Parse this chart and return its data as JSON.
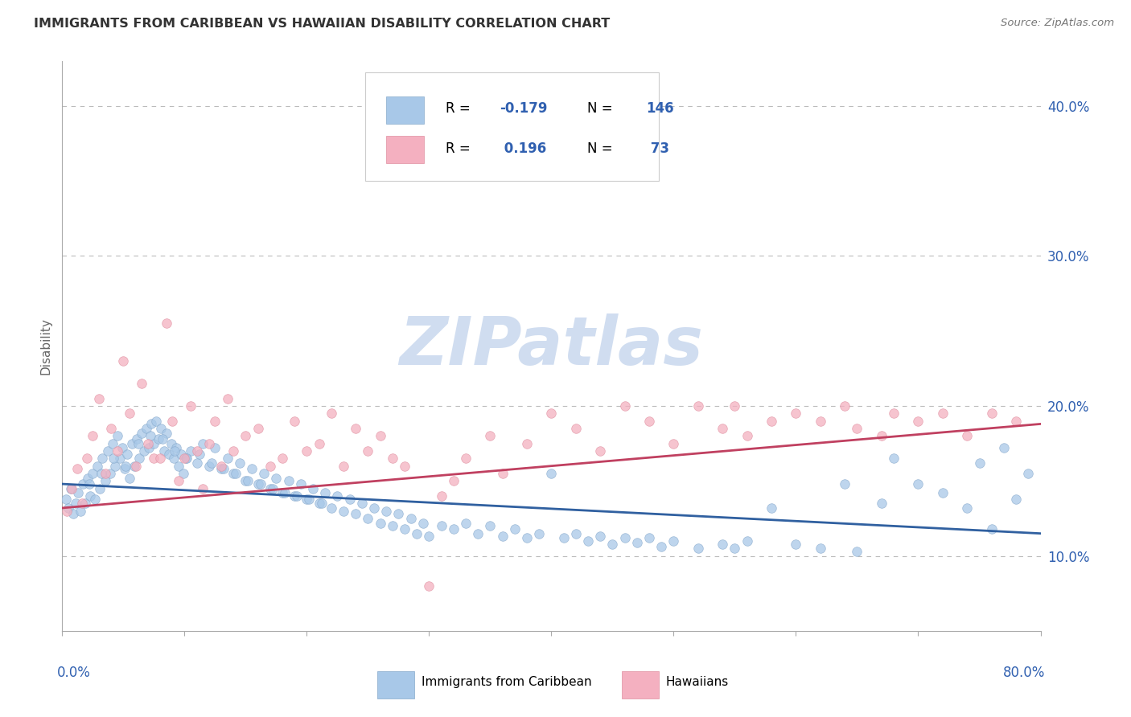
{
  "title": "IMMIGRANTS FROM CARIBBEAN VS HAWAIIAN DISABILITY CORRELATION CHART",
  "source": "Source: ZipAtlas.com",
  "ylabel": "Disability",
  "xlim": [
    0.0,
    80.0
  ],
  "ylim": [
    5.0,
    43.0
  ],
  "yticks": [
    10.0,
    20.0,
    30.0,
    40.0
  ],
  "ytick_labels": [
    "10.0%",
    "20.0%",
    "30.0%",
    "40.0%"
  ],
  "blue_color": "#a8c8e8",
  "blue_edge_color": "#88aacc",
  "blue_line_color": "#3060a0",
  "pink_color": "#f4b0c0",
  "pink_edge_color": "#e090a0",
  "pink_line_color": "#c04060",
  "label_color": "#3060b0",
  "title_color": "#333333",
  "source_color": "#777777",
  "axis_color": "#aaaaaa",
  "grid_color": "#bbbbbb",
  "watermark": "ZIPatlas",
  "watermark_color": "#d0ddf0",
  "background": "#ffffff",
  "blue_scatter": [
    [
      0.3,
      13.8
    ],
    [
      0.5,
      13.2
    ],
    [
      0.7,
      14.5
    ],
    [
      0.9,
      12.8
    ],
    [
      1.1,
      13.5
    ],
    [
      1.3,
      14.2
    ],
    [
      1.5,
      13.0
    ],
    [
      1.7,
      14.8
    ],
    [
      1.9,
      13.5
    ],
    [
      2.1,
      15.2
    ],
    [
      2.3,
      14.0
    ],
    [
      2.5,
      15.5
    ],
    [
      2.7,
      13.8
    ],
    [
      2.9,
      16.0
    ],
    [
      3.1,
      14.5
    ],
    [
      3.3,
      16.5
    ],
    [
      3.5,
      15.0
    ],
    [
      3.7,
      17.0
    ],
    [
      3.9,
      15.5
    ],
    [
      4.1,
      17.5
    ],
    [
      4.3,
      16.0
    ],
    [
      4.5,
      18.0
    ],
    [
      4.7,
      16.5
    ],
    [
      4.9,
      17.2
    ],
    [
      5.1,
      15.8
    ],
    [
      5.3,
      16.8
    ],
    [
      5.5,
      15.2
    ],
    [
      5.7,
      17.5
    ],
    [
      5.9,
      16.0
    ],
    [
      6.1,
      17.8
    ],
    [
      6.3,
      16.5
    ],
    [
      6.5,
      18.2
    ],
    [
      6.7,
      17.0
    ],
    [
      6.9,
      18.5
    ],
    [
      7.1,
      17.2
    ],
    [
      7.3,
      18.8
    ],
    [
      7.5,
      17.5
    ],
    [
      7.7,
      19.0
    ],
    [
      7.9,
      17.8
    ],
    [
      8.1,
      18.5
    ],
    [
      8.3,
      17.0
    ],
    [
      8.5,
      18.2
    ],
    [
      8.7,
      16.8
    ],
    [
      8.9,
      17.5
    ],
    [
      9.1,
      16.5
    ],
    [
      9.3,
      17.2
    ],
    [
      9.5,
      16.0
    ],
    [
      9.7,
      16.8
    ],
    [
      9.9,
      15.5
    ],
    [
      10.1,
      16.5
    ],
    [
      10.5,
      17.0
    ],
    [
      11.0,
      16.2
    ],
    [
      11.5,
      17.5
    ],
    [
      12.0,
      16.0
    ],
    [
      12.5,
      17.2
    ],
    [
      13.0,
      15.8
    ],
    [
      13.5,
      16.5
    ],
    [
      14.0,
      15.5
    ],
    [
      14.5,
      16.2
    ],
    [
      15.0,
      15.0
    ],
    [
      15.5,
      15.8
    ],
    [
      16.0,
      14.8
    ],
    [
      16.5,
      15.5
    ],
    [
      17.0,
      14.5
    ],
    [
      17.5,
      15.2
    ],
    [
      18.0,
      14.2
    ],
    [
      18.5,
      15.0
    ],
    [
      19.0,
      14.0
    ],
    [
      19.5,
      14.8
    ],
    [
      20.0,
      13.8
    ],
    [
      20.5,
      14.5
    ],
    [
      21.0,
      13.5
    ],
    [
      21.5,
      14.2
    ],
    [
      22.0,
      13.2
    ],
    [
      22.5,
      14.0
    ],
    [
      23.0,
      13.0
    ],
    [
      23.5,
      13.8
    ],
    [
      24.0,
      12.8
    ],
    [
      24.5,
      13.5
    ],
    [
      25.0,
      12.5
    ],
    [
      25.5,
      13.2
    ],
    [
      26.0,
      12.2
    ],
    [
      26.5,
      13.0
    ],
    [
      27.0,
      12.0
    ],
    [
      27.5,
      12.8
    ],
    [
      28.0,
      11.8
    ],
    [
      28.5,
      12.5
    ],
    [
      29.0,
      11.5
    ],
    [
      29.5,
      12.2
    ],
    [
      30.0,
      11.3
    ],
    [
      31.0,
      12.0
    ],
    [
      32.0,
      11.8
    ],
    [
      33.0,
      12.2
    ],
    [
      34.0,
      11.5
    ],
    [
      35.0,
      12.0
    ],
    [
      36.0,
      11.3
    ],
    [
      37.0,
      11.8
    ],
    [
      38.0,
      11.2
    ],
    [
      39.0,
      11.5
    ],
    [
      40.0,
      15.5
    ],
    [
      41.0,
      11.2
    ],
    [
      42.0,
      11.5
    ],
    [
      43.0,
      11.0
    ],
    [
      44.0,
      11.3
    ],
    [
      45.0,
      10.8
    ],
    [
      46.0,
      11.2
    ],
    [
      47.0,
      10.9
    ],
    [
      48.0,
      11.2
    ],
    [
      49.0,
      10.6
    ],
    [
      50.0,
      11.0
    ],
    [
      52.0,
      10.5
    ],
    [
      54.0,
      10.8
    ],
    [
      55.0,
      10.5
    ],
    [
      56.0,
      11.0
    ],
    [
      58.0,
      13.2
    ],
    [
      60.0,
      10.8
    ],
    [
      62.0,
      10.5
    ],
    [
      64.0,
      14.8
    ],
    [
      65.0,
      10.3
    ],
    [
      67.0,
      13.5
    ],
    [
      68.0,
      16.5
    ],
    [
      70.0,
      14.8
    ],
    [
      72.0,
      14.2
    ],
    [
      74.0,
      13.2
    ],
    [
      75.0,
      16.2
    ],
    [
      76.0,
      11.8
    ],
    [
      77.0,
      17.2
    ],
    [
      78.0,
      13.8
    ],
    [
      79.0,
      15.5
    ],
    [
      2.2,
      14.8
    ],
    [
      3.2,
      15.5
    ],
    [
      4.2,
      16.5
    ],
    [
      5.2,
      16.0
    ],
    [
      6.2,
      17.5
    ],
    [
      7.2,
      18.0
    ],
    [
      8.2,
      17.8
    ],
    [
      9.2,
      17.0
    ],
    [
      10.2,
      16.5
    ],
    [
      11.2,
      16.8
    ],
    [
      12.2,
      16.2
    ],
    [
      13.2,
      15.8
    ],
    [
      14.2,
      15.5
    ],
    [
      15.2,
      15.0
    ],
    [
      16.2,
      14.8
    ],
    [
      17.2,
      14.5
    ],
    [
      18.2,
      14.2
    ],
    [
      19.2,
      14.0
    ],
    [
      20.2,
      13.8
    ],
    [
      21.2,
      13.5
    ]
  ],
  "pink_scatter": [
    [
      0.4,
      13.0
    ],
    [
      0.8,
      14.5
    ],
    [
      1.2,
      15.8
    ],
    [
      1.6,
      13.5
    ],
    [
      2.0,
      16.5
    ],
    [
      2.5,
      18.0
    ],
    [
      3.0,
      20.5
    ],
    [
      3.5,
      15.5
    ],
    [
      4.0,
      18.5
    ],
    [
      4.5,
      17.0
    ],
    [
      5.0,
      23.0
    ],
    [
      5.5,
      19.5
    ],
    [
      6.0,
      16.0
    ],
    [
      6.5,
      21.5
    ],
    [
      7.0,
      17.5
    ],
    [
      7.5,
      16.5
    ],
    [
      8.0,
      16.5
    ],
    [
      8.5,
      25.5
    ],
    [
      9.0,
      19.0
    ],
    [
      9.5,
      15.0
    ],
    [
      10.0,
      16.5
    ],
    [
      10.5,
      20.0
    ],
    [
      11.0,
      17.0
    ],
    [
      11.5,
      14.5
    ],
    [
      12.0,
      17.5
    ],
    [
      12.5,
      19.0
    ],
    [
      13.0,
      16.0
    ],
    [
      13.5,
      20.5
    ],
    [
      14.0,
      17.0
    ],
    [
      15.0,
      18.0
    ],
    [
      16.0,
      18.5
    ],
    [
      17.0,
      16.0
    ],
    [
      18.0,
      16.5
    ],
    [
      19.0,
      19.0
    ],
    [
      20.0,
      17.0
    ],
    [
      21.0,
      17.5
    ],
    [
      22.0,
      19.5
    ],
    [
      23.0,
      16.0
    ],
    [
      24.0,
      18.5
    ],
    [
      25.0,
      17.0
    ],
    [
      26.0,
      18.0
    ],
    [
      27.0,
      16.5
    ],
    [
      28.0,
      16.0
    ],
    [
      30.0,
      8.0
    ],
    [
      31.0,
      14.0
    ],
    [
      32.0,
      15.0
    ],
    [
      33.0,
      16.5
    ],
    [
      35.0,
      18.0
    ],
    [
      36.0,
      15.5
    ],
    [
      38.0,
      17.5
    ],
    [
      40.0,
      19.5
    ],
    [
      42.0,
      18.5
    ],
    [
      44.0,
      17.0
    ],
    [
      46.0,
      20.0
    ],
    [
      48.0,
      19.0
    ],
    [
      50.0,
      17.5
    ],
    [
      52.0,
      20.0
    ],
    [
      54.0,
      18.5
    ],
    [
      55.0,
      20.0
    ],
    [
      56.0,
      18.0
    ],
    [
      58.0,
      19.0
    ],
    [
      60.0,
      19.5
    ],
    [
      62.0,
      19.0
    ],
    [
      64.0,
      20.0
    ],
    [
      65.0,
      18.5
    ],
    [
      67.0,
      18.0
    ],
    [
      68.0,
      19.5
    ],
    [
      70.0,
      19.0
    ],
    [
      72.0,
      19.5
    ],
    [
      74.0,
      18.0
    ],
    [
      76.0,
      19.5
    ],
    [
      78.0,
      19.0
    ]
  ],
  "blue_trend": [
    0.0,
    80.0,
    14.8,
    11.5
  ],
  "pink_trend": [
    0.0,
    80.0,
    13.2,
    18.8
  ]
}
